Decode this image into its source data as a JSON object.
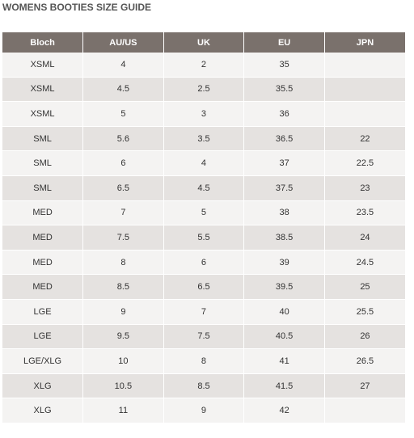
{
  "title": "WOMENS BOOTIES SIZE GUIDE",
  "table": {
    "headers": [
      "Bloch",
      "AU/US",
      "UK",
      "EU",
      "JPN"
    ],
    "rows": [
      [
        "XSML",
        "4",
        "2",
        "35",
        ""
      ],
      [
        "XSML",
        "4.5",
        "2.5",
        "35.5",
        ""
      ],
      [
        "XSML",
        "5",
        "3",
        "36",
        ""
      ],
      [
        "SML",
        "5.6",
        "3.5",
        "36.5",
        "22"
      ],
      [
        "SML",
        "6",
        "4",
        "37",
        "22.5"
      ],
      [
        "SML",
        "6.5",
        "4.5",
        "37.5",
        "23"
      ],
      [
        "MED",
        "7",
        "5",
        "38",
        "23.5"
      ],
      [
        "MED",
        "7.5",
        "5.5",
        "38.5",
        "24"
      ],
      [
        "MED",
        "8",
        "6",
        "39",
        "24.5"
      ],
      [
        "MED",
        "8.5",
        "6.5",
        "39.5",
        "25"
      ],
      [
        "LGE",
        "9",
        "7",
        "40",
        "25.5"
      ],
      [
        "LGE",
        "9.5",
        "7.5",
        "40.5",
        "26"
      ],
      [
        "LGE/XLG",
        "10",
        "8",
        "41",
        "26.5"
      ],
      [
        "XLG",
        "10.5",
        "8.5",
        "41.5",
        "27"
      ],
      [
        "XLG",
        "11",
        "9",
        "42",
        ""
      ]
    ]
  },
  "colors": {
    "header_bg": "#7a716c",
    "row_light": "#f4f3f2",
    "row_dark": "#e5e2e0"
  }
}
